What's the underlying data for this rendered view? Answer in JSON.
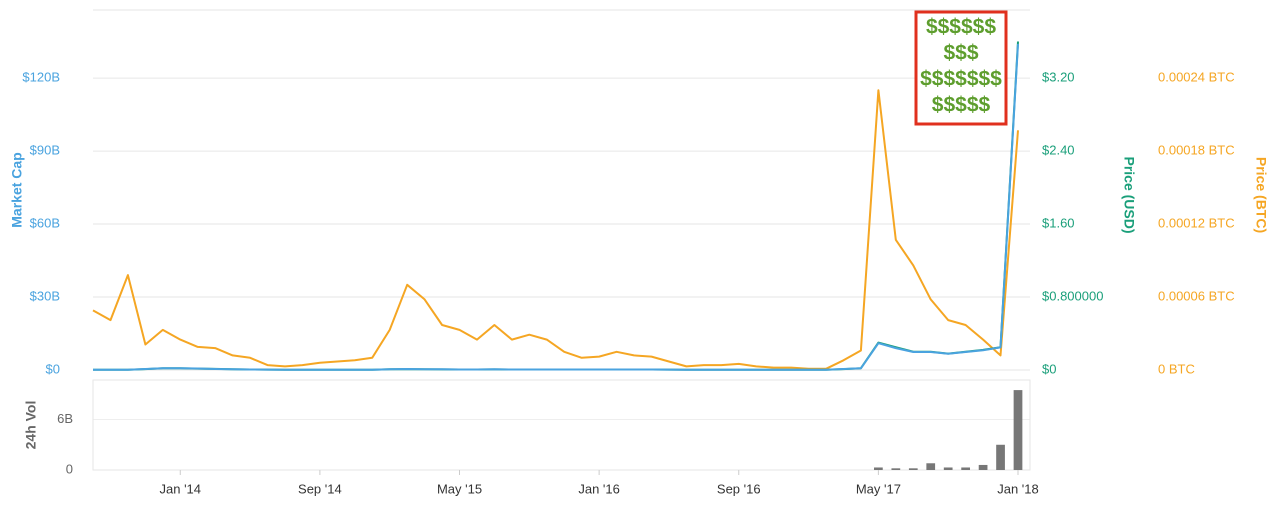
{
  "chart_data": [
    {
      "type": "line",
      "annotation": [
        "$$$$$$",
        "$$$",
        "$$$$$$$",
        "$$$$$"
      ],
      "ylabel": "Market Cap",
      "y2label": "Price (USD)",
      "y3label": "Price (BTC)",
      "x": [
        "2013-08",
        "2013-09",
        "2013-10",
        "2013-11",
        "2013-12",
        "2014-01",
        "2014-02",
        "2014-03",
        "2014-04",
        "2014-05",
        "2014-06",
        "2014-07",
        "2014-08",
        "2014-09",
        "2014-10",
        "2014-11",
        "2014-12",
        "2015-01",
        "2015-02",
        "2015-03",
        "2015-04",
        "2015-05",
        "2015-06",
        "2015-07",
        "2015-08",
        "2015-09",
        "2015-10",
        "2015-11",
        "2015-12",
        "2016-01",
        "2016-02",
        "2016-03",
        "2016-04",
        "2016-05",
        "2016-06",
        "2016-07",
        "2016-08",
        "2016-09",
        "2016-10",
        "2016-11",
        "2016-12",
        "2017-01",
        "2017-02",
        "2017-03",
        "2017-04",
        "2017-05",
        "2017-06",
        "2017-07",
        "2017-08",
        "2017-09",
        "2017-10",
        "2017-11",
        "2017-12",
        "2018-01"
      ],
      "xlim": [
        "2013-08",
        "2018-01"
      ],
      "ylim": [
        0,
        148
      ],
      "yticks": [
        {
          "value": 0,
          "label": "$0"
        },
        {
          "value": 30,
          "label": "$30B"
        },
        {
          "value": 60,
          "label": "$60B"
        },
        {
          "value": 90,
          "label": "$90B"
        },
        {
          "value": 120,
          "label": "$120B"
        }
      ],
      "y2lim": [
        0,
        3.945
      ],
      "y2ticks": [
        {
          "value": 0,
          "label": "$0"
        },
        {
          "value": 0.8,
          "label": "$0.800000"
        },
        {
          "value": 1.6,
          "label": "$1.60"
        },
        {
          "value": 2.4,
          "label": "$2.40"
        },
        {
          "value": 3.2,
          "label": "$3.20"
        }
      ],
      "y3lim": [
        0,
        0.0002959
      ],
      "y3ticks": [
        {
          "value": 0,
          "label": "0 BTC"
        },
        {
          "value": 6e-05,
          "label": "0.00006 BTC"
        },
        {
          "value": 0.00012,
          "label": "0.00012 BTC"
        },
        {
          "value": 0.00018,
          "label": "0.00018 BTC"
        },
        {
          "value": 0.00024,
          "label": "0.00024 BTC"
        }
      ],
      "grid": true,
      "series": [
        {
          "name": "Price (BTC)",
          "axis": "y3",
          "color": "#f5a623",
          "values": [
            4.9e-05,
            4.1e-05,
            7.8e-05,
            2.1e-05,
            3.3e-05,
            2.5e-05,
            1.9e-05,
            1.8e-05,
            1.2e-05,
            1e-05,
            4e-06,
            3e-06,
            4e-06,
            6e-06,
            7e-06,
            8e-06,
            1e-05,
            3.3e-05,
            7e-05,
            5.8e-05,
            3.7e-05,
            3.3e-05,
            2.5e-05,
            3.7e-05,
            2.5e-05,
            2.9e-05,
            2.5e-05,
            1.5e-05,
            1e-05,
            1.1e-05,
            1.5e-05,
            1.2e-05,
            1.1e-05,
            7e-06,
            3e-06,
            4e-06,
            4e-06,
            5e-06,
            3e-06,
            2e-06,
            2e-06,
            1e-06,
            1e-06,
            8e-06,
            1.6e-05,
            0.00023,
            0.000107,
            8.6e-05,
            5.8e-05,
            4.1e-05,
            3.7e-05,
            2.5e-05,
            1.2e-05,
            0.000197
          ]
        },
        {
          "name": "Price (USD)",
          "axis": "y2",
          "color": "#1a9f7a",
          "values": [
            0.002,
            0.002,
            0.003,
            0.01,
            0.02,
            0.02,
            0.015,
            0.012,
            0.008,
            0.006,
            0.004,
            0.003,
            0.003,
            0.003,
            0.003,
            0.003,
            0.003,
            0.008,
            0.01,
            0.008,
            0.007,
            0.006,
            0.006,
            0.007,
            0.006,
            0.006,
            0.006,
            0.005,
            0.005,
            0.005,
            0.006,
            0.005,
            0.005,
            0.004,
            0.003,
            0.003,
            0.003,
            0.003,
            0.003,
            0.003,
            0.003,
            0.003,
            0.003,
            0.01,
            0.02,
            0.3,
            0.25,
            0.2,
            0.2,
            0.18,
            0.2,
            0.22,
            0.25,
            3.6
          ]
        },
        {
          "name": "Market Cap",
          "axis": "y",
          "color": "#4aa3df",
          "values": [
            0.07,
            0.07,
            0.1,
            0.4,
            0.7,
            0.7,
            0.6,
            0.4,
            0.3,
            0.2,
            0.15,
            0.1,
            0.1,
            0.1,
            0.1,
            0.1,
            0.1,
            0.3,
            0.4,
            0.3,
            0.3,
            0.2,
            0.2,
            0.3,
            0.2,
            0.2,
            0.2,
            0.2,
            0.2,
            0.2,
            0.2,
            0.2,
            0.2,
            0.15,
            0.1,
            0.1,
            0.1,
            0.1,
            0.1,
            0.1,
            0.1,
            0.1,
            0.1,
            0.4,
            0.7,
            11,
            9,
            7.4,
            7.4,
            6.7,
            7.4,
            8.1,
            9.3,
            134
          ]
        }
      ]
    },
    {
      "type": "bar",
      "ylabel": "24h Vol",
      "color": "#777777",
      "x": [
        "2013-08",
        "2013-09",
        "2013-10",
        "2013-11",
        "2013-12",
        "2014-01",
        "2014-02",
        "2014-03",
        "2014-04",
        "2014-05",
        "2014-06",
        "2014-07",
        "2014-08",
        "2014-09",
        "2014-10",
        "2014-11",
        "2014-12",
        "2015-01",
        "2015-02",
        "2015-03",
        "2015-04",
        "2015-05",
        "2015-06",
        "2015-07",
        "2015-08",
        "2015-09",
        "2015-10",
        "2015-11",
        "2015-12",
        "2016-01",
        "2016-02",
        "2016-03",
        "2016-04",
        "2016-05",
        "2016-06",
        "2016-07",
        "2016-08",
        "2016-09",
        "2016-10",
        "2016-11",
        "2016-12",
        "2017-01",
        "2017-02",
        "2017-03",
        "2017-04",
        "2017-05",
        "2017-06",
        "2017-07",
        "2017-08",
        "2017-09",
        "2017-10",
        "2017-11",
        "2017-12",
        "2018-01"
      ],
      "xlim": [
        "2013-08",
        "2018-01"
      ],
      "xticks": [
        {
          "value": "2014-01",
          "label": "Jan '14"
        },
        {
          "value": "2014-09",
          "label": "Sep '14"
        },
        {
          "value": "2015-05",
          "label": "May '15"
        },
        {
          "value": "2016-01",
          "label": "Jan '16"
        },
        {
          "value": "2016-09",
          "label": "Sep '16"
        },
        {
          "value": "2017-05",
          "label": "May '17"
        },
        {
          "value": "2018-01",
          "label": "Jan '18"
        }
      ],
      "ylim": [
        0,
        10.7
      ],
      "yticks": [
        0,
        {
          "value": 6,
          "label": "6B"
        }
      ],
      "values": [
        0,
        0,
        0,
        0,
        0,
        0,
        0,
        0,
        0,
        0,
        0,
        0,
        0,
        0,
        0,
        0,
        0,
        0,
        0,
        0,
        0,
        0,
        0,
        0,
        0,
        0,
        0,
        0,
        0,
        0,
        0,
        0,
        0,
        0,
        0,
        0,
        0,
        0,
        0,
        0,
        0,
        0,
        0,
        0,
        0,
        0.3,
        0.2,
        0.2,
        0.8,
        0.3,
        0.3,
        0.6,
        3,
        9.5
      ]
    }
  ]
}
